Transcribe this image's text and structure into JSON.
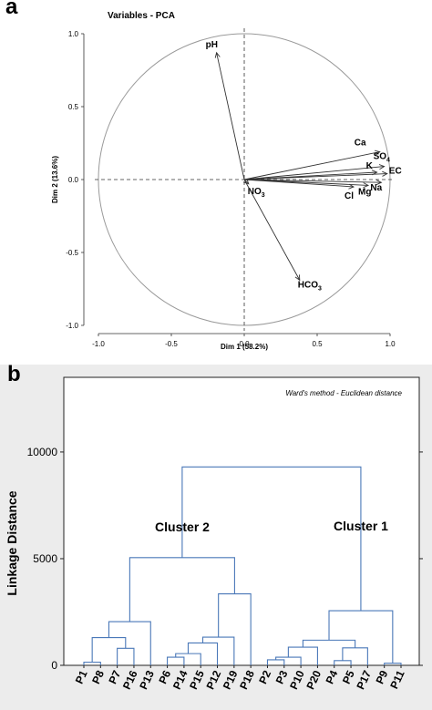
{
  "chart_data": [
    {
      "panel_label": "a",
      "type": "scatter",
      "subtype": "pca-correlation-circle",
      "title": "Variables - PCA",
      "xlabel": "Dim 1 (58.2%)",
      "ylabel": "Dim 2 (13.6%)",
      "xlim": [
        -1.0,
        1.0
      ],
      "ylim": [
        -1.0,
        1.0
      ],
      "x_ticks": [
        "-1.0",
        "-0.5",
        "0.0",
        "0.5",
        "1.0"
      ],
      "y_ticks": [
        "1.0",
        "0.5",
        "0.0",
        "-0.5",
        "-1.0"
      ],
      "x_tick_values": [
        -1.0,
        -0.5,
        0.0,
        0.5,
        1.0
      ],
      "y_tick_values": [
        1.0,
        0.5,
        0.0,
        -0.5,
        -1.0
      ],
      "grid": false,
      "reference_lines": "dashed at x=0 and y=0",
      "vectors": [
        {
          "name": "pH",
          "sub": "",
          "x": -0.19,
          "y": 0.87
        },
        {
          "name": "Ca",
          "sub": "",
          "x": 0.93,
          "y": 0.19
        },
        {
          "name": "SO",
          "sub": "4",
          "x": 0.96,
          "y": 0.09
        },
        {
          "name": "K",
          "sub": "",
          "x": 0.91,
          "y": 0.05
        },
        {
          "name": "EC",
          "sub": "",
          "x": 0.98,
          "y": 0.04
        },
        {
          "name": "Na",
          "sub": "",
          "x": 0.94,
          "y": -0.02
        },
        {
          "name": "Mg",
          "sub": "",
          "x": 0.85,
          "y": -0.04
        },
        {
          "name": "Cl",
          "sub": "",
          "x": 0.75,
          "y": -0.05
        },
        {
          "name": "NO",
          "sub": "3",
          "x": 0.03,
          "y": -0.03
        },
        {
          "name": "HCO",
          "sub": "3",
          "x": 0.38,
          "y": -0.69
        }
      ]
    },
    {
      "panel_label": "b",
      "type": "dendrogram",
      "annotation": "Ward's method - Euclidean distance",
      "ylabel": "Linkage Distance",
      "ylim": [
        0,
        13500
      ],
      "y_ticks": [
        "0",
        "5000",
        "10000"
      ],
      "y_tick_values": [
        0,
        5000,
        10000
      ],
      "leaves": [
        "P1",
        "P8",
        "P7",
        "P16",
        "P13",
        "P6",
        "P14",
        "P15",
        "P12",
        "P19",
        "P18",
        "P2",
        "P3",
        "P10",
        "P20",
        "P4",
        "P5",
        "P17",
        "P9",
        "P11"
      ],
      "clusters": [
        {
          "name": "Cluster 2",
          "members": [
            "P1",
            "P8",
            "P7",
            "P16",
            "P13",
            "P6",
            "P14",
            "P15",
            "P12",
            "P19",
            "P18"
          ]
        },
        {
          "name": "Cluster 1",
          "members": [
            "P2",
            "P3",
            "P10",
            "P20",
            "P4",
            "P5",
            "P17",
            "P9",
            "P11"
          ]
        }
      ],
      "merges": [
        {
          "a": "P1",
          "b": "P8",
          "height": 150
        },
        {
          "a": "P7",
          "b": "P16",
          "height": 800
        },
        {
          "a": "m0",
          "b": "m1",
          "height": 1300
        },
        {
          "a": "m2",
          "b": "P13",
          "height": 2050
        },
        {
          "a": "P6",
          "b": "P14",
          "height": 380
        },
        {
          "a": "m4",
          "b": "P15",
          "height": 550
        },
        {
          "a": "m5",
          "b": "P12",
          "height": 1050
        },
        {
          "a": "m6",
          "b": "P19",
          "height": 1320
        },
        {
          "a": "m7",
          "b": "P18",
          "height": 3350
        },
        {
          "a": "m3",
          "b": "m8",
          "height": 5050
        },
        {
          "a": "P2",
          "b": "P3",
          "height": 260
        },
        {
          "a": "m10",
          "b": "P10",
          "height": 380
        },
        {
          "a": "m11",
          "b": "P20",
          "height": 850
        },
        {
          "a": "P4",
          "b": "P5",
          "height": 220
        },
        {
          "a": "m13",
          "b": "P17",
          "height": 820
        },
        {
          "a": "m12",
          "b": "m14",
          "height": 1180
        },
        {
          "a": "P9",
          "b": "P11",
          "height": 100
        },
        {
          "a": "m15",
          "b": "m16",
          "height": 2560
        },
        {
          "a": "m9",
          "b": "m17",
          "height": 9300
        }
      ]
    }
  ]
}
